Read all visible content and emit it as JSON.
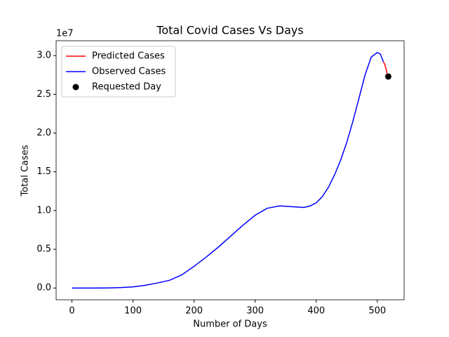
{
  "chart_data": {
    "type": "line",
    "title": "Total Covid Cases Vs Days",
    "x_label": "Number of Days",
    "y_label": "Total Cases",
    "y_offset_label": "1e7",
    "xlim": [
      -25.9,
      543.9
    ],
    "ylim": [
      -1520000,
      31920000
    ],
    "xticks": [
      0,
      100,
      200,
      300,
      400,
      500
    ],
    "yticks": [
      {
        "value": 0,
        "label": "0.0"
      },
      {
        "value": 5000000,
        "label": "0.5"
      },
      {
        "value": 10000000,
        "label": "1.0"
      },
      {
        "value": 15000000,
        "label": "1.5"
      },
      {
        "value": 20000000,
        "label": "2.0"
      },
      {
        "value": 25000000,
        "label": "2.5"
      },
      {
        "value": 30000000,
        "label": "3.0"
      }
    ],
    "legend": "upper left",
    "series": [
      {
        "name": "Predicted Cases",
        "type": "line",
        "color": "#ff0000",
        "x": [
          510,
          512,
          514,
          516
        ],
        "values": [
          29200000,
          28900000,
          28400000,
          27700000
        ]
      },
      {
        "name": "Observed Cases",
        "type": "line",
        "color": "#0000ff",
        "x": [
          0,
          20,
          40,
          60,
          80,
          100,
          120,
          140,
          160,
          180,
          200,
          220,
          240,
          260,
          280,
          300,
          320,
          340,
          360,
          380,
          390,
          400,
          410,
          420,
          430,
          440,
          450,
          460,
          470,
          480,
          490,
          500,
          505,
          510
        ],
        "values": [
          0,
          0,
          0,
          10000,
          50000,
          150000,
          350000,
          650000,
          1000000,
          1700000,
          2800000,
          4000000,
          5300000,
          6700000,
          8100000,
          9400000,
          10300000,
          10600000,
          10500000,
          10400000,
          10600000,
          11000000,
          11800000,
          13000000,
          14600000,
          16500000,
          18800000,
          21500000,
          24500000,
          27500000,
          29800000,
          30400000,
          30200000,
          29200000
        ]
      },
      {
        "name": "Requested Day",
        "type": "scatter",
        "color": "#000000",
        "x": [
          518
        ],
        "values": [
          27300000
        ]
      }
    ]
  }
}
